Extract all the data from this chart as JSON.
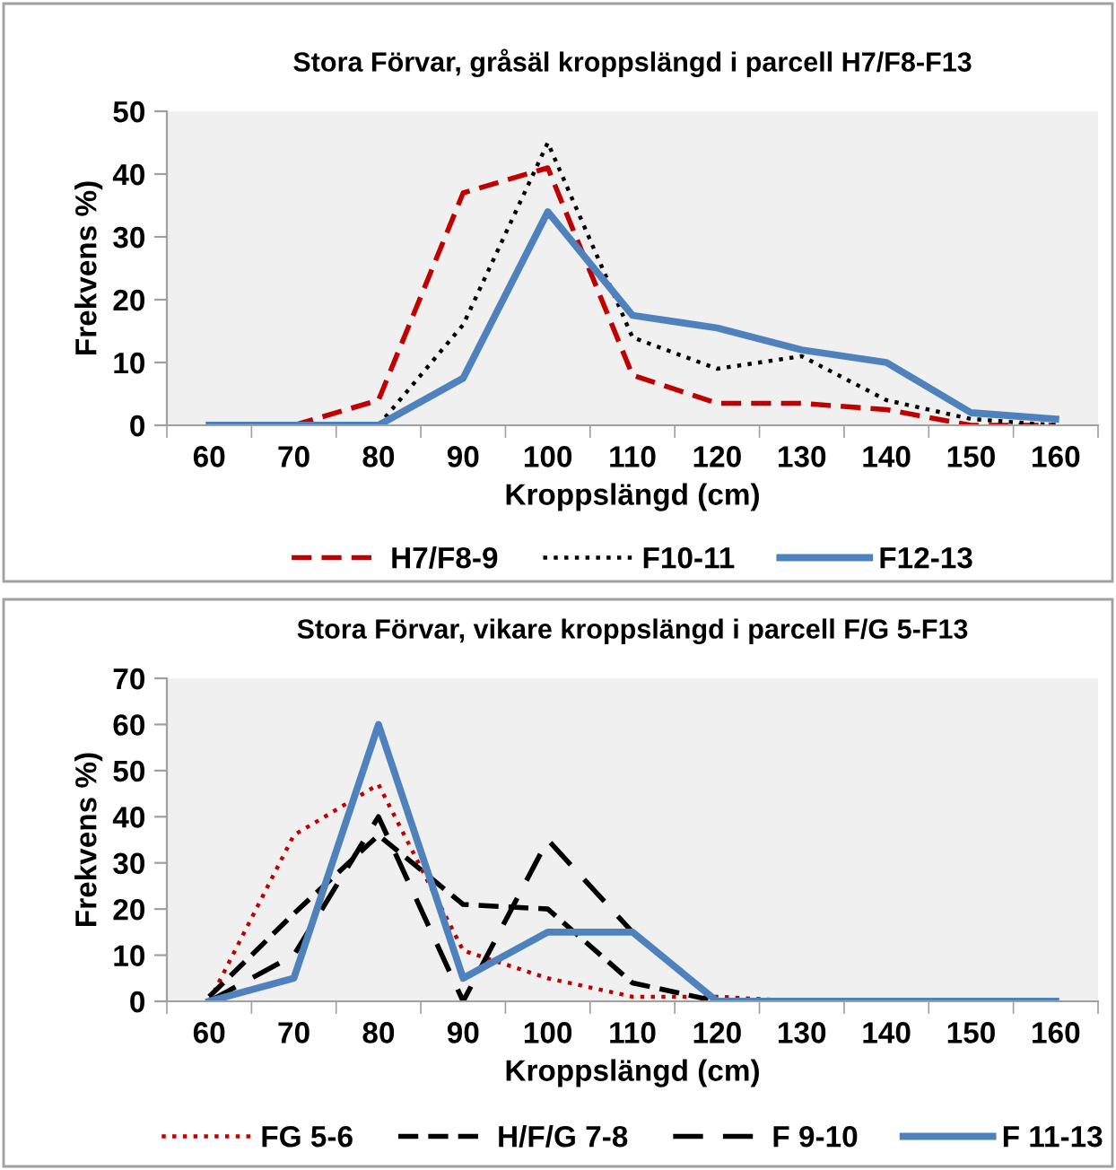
{
  "chart_data": [
    {
      "type": "line",
      "title": "Stora Förvar, gråsäl kroppslängd i parcell H7/F8-F13",
      "xlabel": "Kroppslängd (cm)",
      "ylabel": "Frekvens %)",
      "categories": [
        "60",
        "70",
        "80",
        "90",
        "100",
        "110",
        "120",
        "130",
        "140",
        "150",
        "160"
      ],
      "ylim": [
        0,
        50
      ],
      "yticks": [
        0,
        10,
        20,
        30,
        40,
        50
      ],
      "grid": false,
      "legend": "bottom",
      "series": [
        {
          "name": "H7/F8-9",
          "color": "#c00000",
          "line_style": "dashed",
          "values": [
            null,
            0,
            4,
            37,
            41,
            8,
            3.5,
            3.5,
            2.5,
            0,
            0
          ]
        },
        {
          "name": "F10-11",
          "color": "#000000",
          "line_style": "dotted",
          "values": [
            null,
            null,
            0,
            16,
            45,
            14,
            9,
            11,
            4,
            1,
            0
          ]
        },
        {
          "name": "F12-13",
          "color": "#4f81bd",
          "line_style": "solid",
          "values": [
            0,
            0,
            0,
            7.5,
            34,
            17.5,
            15.5,
            12,
            10,
            2,
            1
          ]
        }
      ]
    },
    {
      "type": "line",
      "title": "Stora Förvar, vikare kroppslängd i parcell F/G 5-F13",
      "xlabel": "Kroppslängd (cm)",
      "ylabel": "Frekvens %)",
      "categories": [
        "60",
        "70",
        "80",
        "90",
        "100",
        "110",
        "120",
        "130",
        "140",
        "150",
        "160"
      ],
      "ylim": [
        0,
        70
      ],
      "yticks": [
        0,
        10,
        20,
        30,
        40,
        50,
        60,
        70
      ],
      "grid": false,
      "legend": "bottom",
      "series": [
        {
          "name": "FG 5-6",
          "color": "#c00000",
          "line_style": "dotted",
          "values": [
            0,
            36,
            47,
            11,
            5,
            1,
            1,
            0,
            null,
            null,
            null
          ]
        },
        {
          "name": "H/F/G 7-8",
          "color": "#000000",
          "line_style": "dashed",
          "values": [
            1,
            19,
            36,
            21,
            20,
            4,
            0,
            null,
            null,
            null,
            null
          ]
        },
        {
          "name": "F 9-10",
          "color": "#000000",
          "line_style": "dashed",
          "values": [
            0,
            10,
            40,
            0,
            35,
            15,
            0,
            null,
            null,
            null,
            null
          ]
        },
        {
          "name": "F 11-13",
          "color": "#4f81bd",
          "line_style": "solid",
          "values": [
            0,
            5,
            60,
            5,
            15,
            15,
            0,
            0,
            0,
            0,
            0
          ]
        }
      ]
    }
  ]
}
